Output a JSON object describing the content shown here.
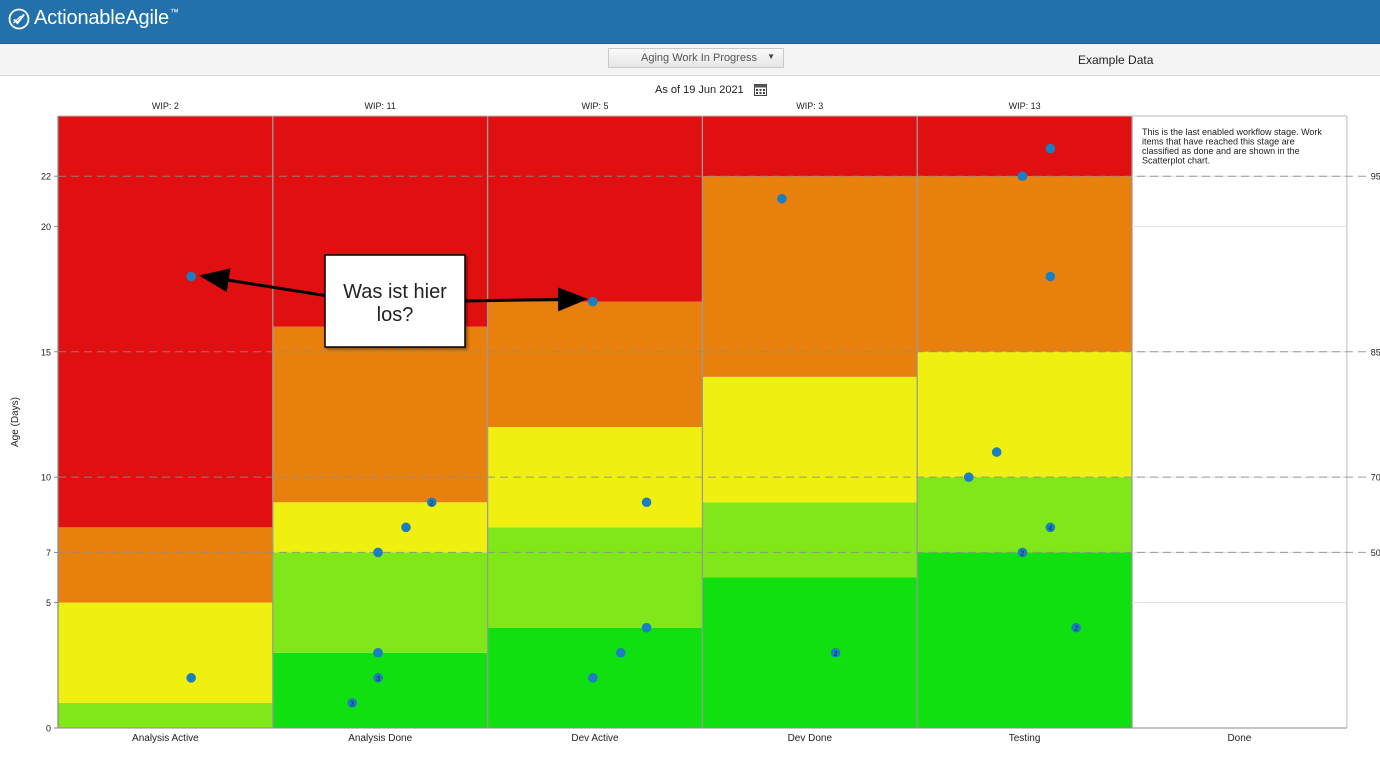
{
  "app": {
    "name": "ActionableAgile",
    "tm": "™"
  },
  "toolbar": {
    "view_select": "Aging Work In Progress",
    "dataset": "Example Data"
  },
  "asof": {
    "label": "As of 19 Jun 2021"
  },
  "icons": {
    "logo": "checkmark-circle-logo-icon",
    "calendar": "calendar-icon",
    "dropdown": "triangle-down-icon"
  },
  "colors": {
    "red": "#e01010",
    "orange": "#e8800e",
    "yellow": "#f0f010",
    "lightgreen": "#80e818",
    "green": "#10e010",
    "dot": "#1a7fc2",
    "header": "#2371aa"
  },
  "callout": {
    "text_line1": "Was ist hier",
    "text_line2": "los?"
  },
  "done_note": [
    "This is the last enabled workflow stage. Work",
    "items that have reached this stage are",
    "classified as done and are shown in the",
    "Scatterplot chart."
  ],
  "chart_data": {
    "type": "scatter",
    "ylabel": "Age (Days)",
    "ylim": [
      0,
      24.4
    ],
    "y_ticks": [
      0,
      5,
      7,
      10,
      15,
      20,
      22
    ],
    "percentiles": [
      {
        "label": "50%",
        "value": 7
      },
      {
        "label": "70%",
        "value": 10
      },
      {
        "label": "85%",
        "value": 15
      },
      {
        "label": "95%",
        "value": 22
      }
    ],
    "columns": [
      {
        "name": "Analysis Active",
        "wip": "WIP: 2",
        "bands": [
          1,
          5,
          8
        ],
        "top": 24.4,
        "points": [
          {
            "x": 0.62,
            "y": 2
          },
          {
            "x": 0.62,
            "y": 18
          }
        ]
      },
      {
        "name": "Analysis Done",
        "wip": "WIP: 11",
        "bands": [
          3,
          7,
          9,
          16
        ],
        "top": 24.4,
        "points": [
          {
            "x": 0.37,
            "y": 1,
            "n": "3"
          },
          {
            "x": 0.49,
            "y": 2,
            "n": "3"
          },
          {
            "x": 0.49,
            "y": 3
          },
          {
            "x": 0.49,
            "y": 7
          },
          {
            "x": 0.62,
            "y": 8
          },
          {
            "x": 0.74,
            "y": 9,
            "n": "2"
          }
        ]
      },
      {
        "name": "Dev Active",
        "wip": "WIP: 5",
        "bands": [
          4,
          8,
          12,
          17
        ],
        "top": 24.4,
        "points": [
          {
            "x": 0.49,
            "y": 2
          },
          {
            "x": 0.62,
            "y": 3
          },
          {
            "x": 0.74,
            "y": 4
          },
          {
            "x": 0.74,
            "y": 9
          },
          {
            "x": 0.49,
            "y": 17
          }
        ]
      },
      {
        "name": "Dev Done",
        "wip": "WIP: 3",
        "bands": [
          6,
          9,
          14,
          22
        ],
        "top": 24.4,
        "points": [
          {
            "x": 0.62,
            "y": 3,
            "n": "2"
          },
          {
            "x": 0.37,
            "y": 21.1
          }
        ]
      },
      {
        "name": "Testing",
        "wip": "WIP: 13",
        "bands": [
          7,
          10,
          15,
          22
        ],
        "top": 24.4,
        "points": [
          {
            "x": 0.74,
            "y": 4,
            "n": "2"
          },
          {
            "x": 0.49,
            "y": 7,
            "n": "2"
          },
          {
            "x": 0.62,
            "y": 8,
            "n": "4"
          },
          {
            "x": 0.24,
            "y": 10
          },
          {
            "x": 0.37,
            "y": 11
          },
          {
            "x": 0.62,
            "y": 18
          },
          {
            "x": 0.49,
            "y": 22
          },
          {
            "x": 0.62,
            "y": 23.1
          }
        ]
      },
      {
        "name": "Done",
        "wip": "",
        "bands": [],
        "points": []
      }
    ]
  }
}
